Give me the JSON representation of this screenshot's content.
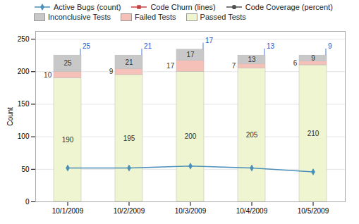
{
  "chart_data": {
    "type": "bar",
    "stacked": true,
    "data_labels": true,
    "grid": true,
    "ylabel": "Count",
    "categories": [
      "10/1/2009",
      "10/2/2009",
      "10/3/2009",
      "10/4/2009",
      "10/5/2009"
    ],
    "ylim": [
      0,
      262
    ],
    "yticks": [
      0,
      50,
      100,
      150,
      200,
      250
    ],
    "series": [
      {
        "name": "Passed Tests",
        "type": "bar",
        "color": "#eef5d0",
        "values": [
          190,
          195,
          200,
          205,
          210
        ]
      },
      {
        "name": "Failed Tests",
        "type": "bar",
        "color": "#f5c0b8",
        "values": [
          10,
          9,
          17,
          7,
          6
        ]
      },
      {
        "name": "Inconclusive Tests",
        "type": "bar",
        "color": "#c8c8c8",
        "values": [
          25,
          21,
          17,
          13,
          9
        ]
      },
      {
        "name": "Active Bugs (count)",
        "type": "line",
        "marker": "diamond",
        "color": "#4a90b8",
        "values": [
          52,
          52,
          55,
          52,
          46
        ]
      },
      {
        "name": "Code Churn (lines)",
        "type": "line",
        "marker": "square",
        "color": "#c84040",
        "values": [
          null,
          null,
          null,
          null,
          null
        ]
      },
      {
        "name": "Code Coverage (percent)",
        "type": "line",
        "marker": "circle",
        "color": "#505050",
        "values": [
          null,
          null,
          null,
          null,
          null
        ]
      }
    ],
    "annotations": [
      {
        "text": "25",
        "category": "10/1/2009",
        "color": "#2255cc"
      },
      {
        "text": "21",
        "category": "10/2/2009",
        "color": "#2255cc"
      },
      {
        "text": "17",
        "category": "10/3/2009",
        "color": "#2255cc"
      },
      {
        "text": "13",
        "category": "10/4/2009",
        "color": "#2255cc"
      },
      {
        "text": "9",
        "category": "10/5/2009",
        "color": "#2255cc"
      }
    ]
  }
}
